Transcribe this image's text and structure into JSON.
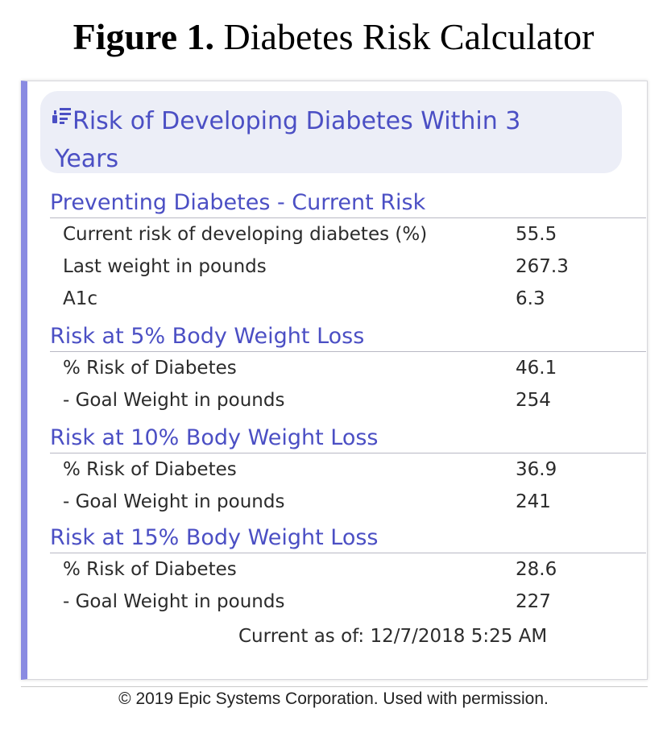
{
  "figure": {
    "label": "Figure 1.",
    "title": "Diabetes Risk Calculator"
  },
  "panel": {
    "icon": "chart-list-icon",
    "title": "Risk of Developing Diabetes Within 3 Years",
    "accent_color": "#4b4fc4",
    "border_color": "#8a8be2"
  },
  "sections": [
    {
      "title": "Preventing Diabetes - Current Risk",
      "rows": [
        {
          "label": "Current risk of developing diabetes (%)",
          "value": "55.5"
        },
        {
          "label": "Last weight in pounds",
          "value": "267.3"
        },
        {
          "label": "A1c",
          "value": "6.3"
        }
      ]
    },
    {
      "title": "Risk at 5% Body Weight Loss",
      "rows": [
        {
          "label": "% Risk of Diabetes",
          "value": "46.1"
        },
        {
          "label": "- Goal Weight in pounds",
          "value": "254"
        }
      ]
    },
    {
      "title": "Risk at 10% Body Weight Loss",
      "rows": [
        {
          "label": "% Risk of Diabetes",
          "value": "36.9"
        },
        {
          "label": "- Goal Weight in pounds",
          "value": "241"
        }
      ]
    },
    {
      "title": "Risk at 15% Body Weight Loss",
      "rows": [
        {
          "label": "% Risk of Diabetes",
          "value": "28.6"
        },
        {
          "label": "- Goal Weight in pounds",
          "value": "227"
        }
      ]
    }
  ],
  "timestamp": "Current as of: 12/7/2018  5:25 AM",
  "copyright": "© 2019 Epic Systems Corporation. Used with permission."
}
